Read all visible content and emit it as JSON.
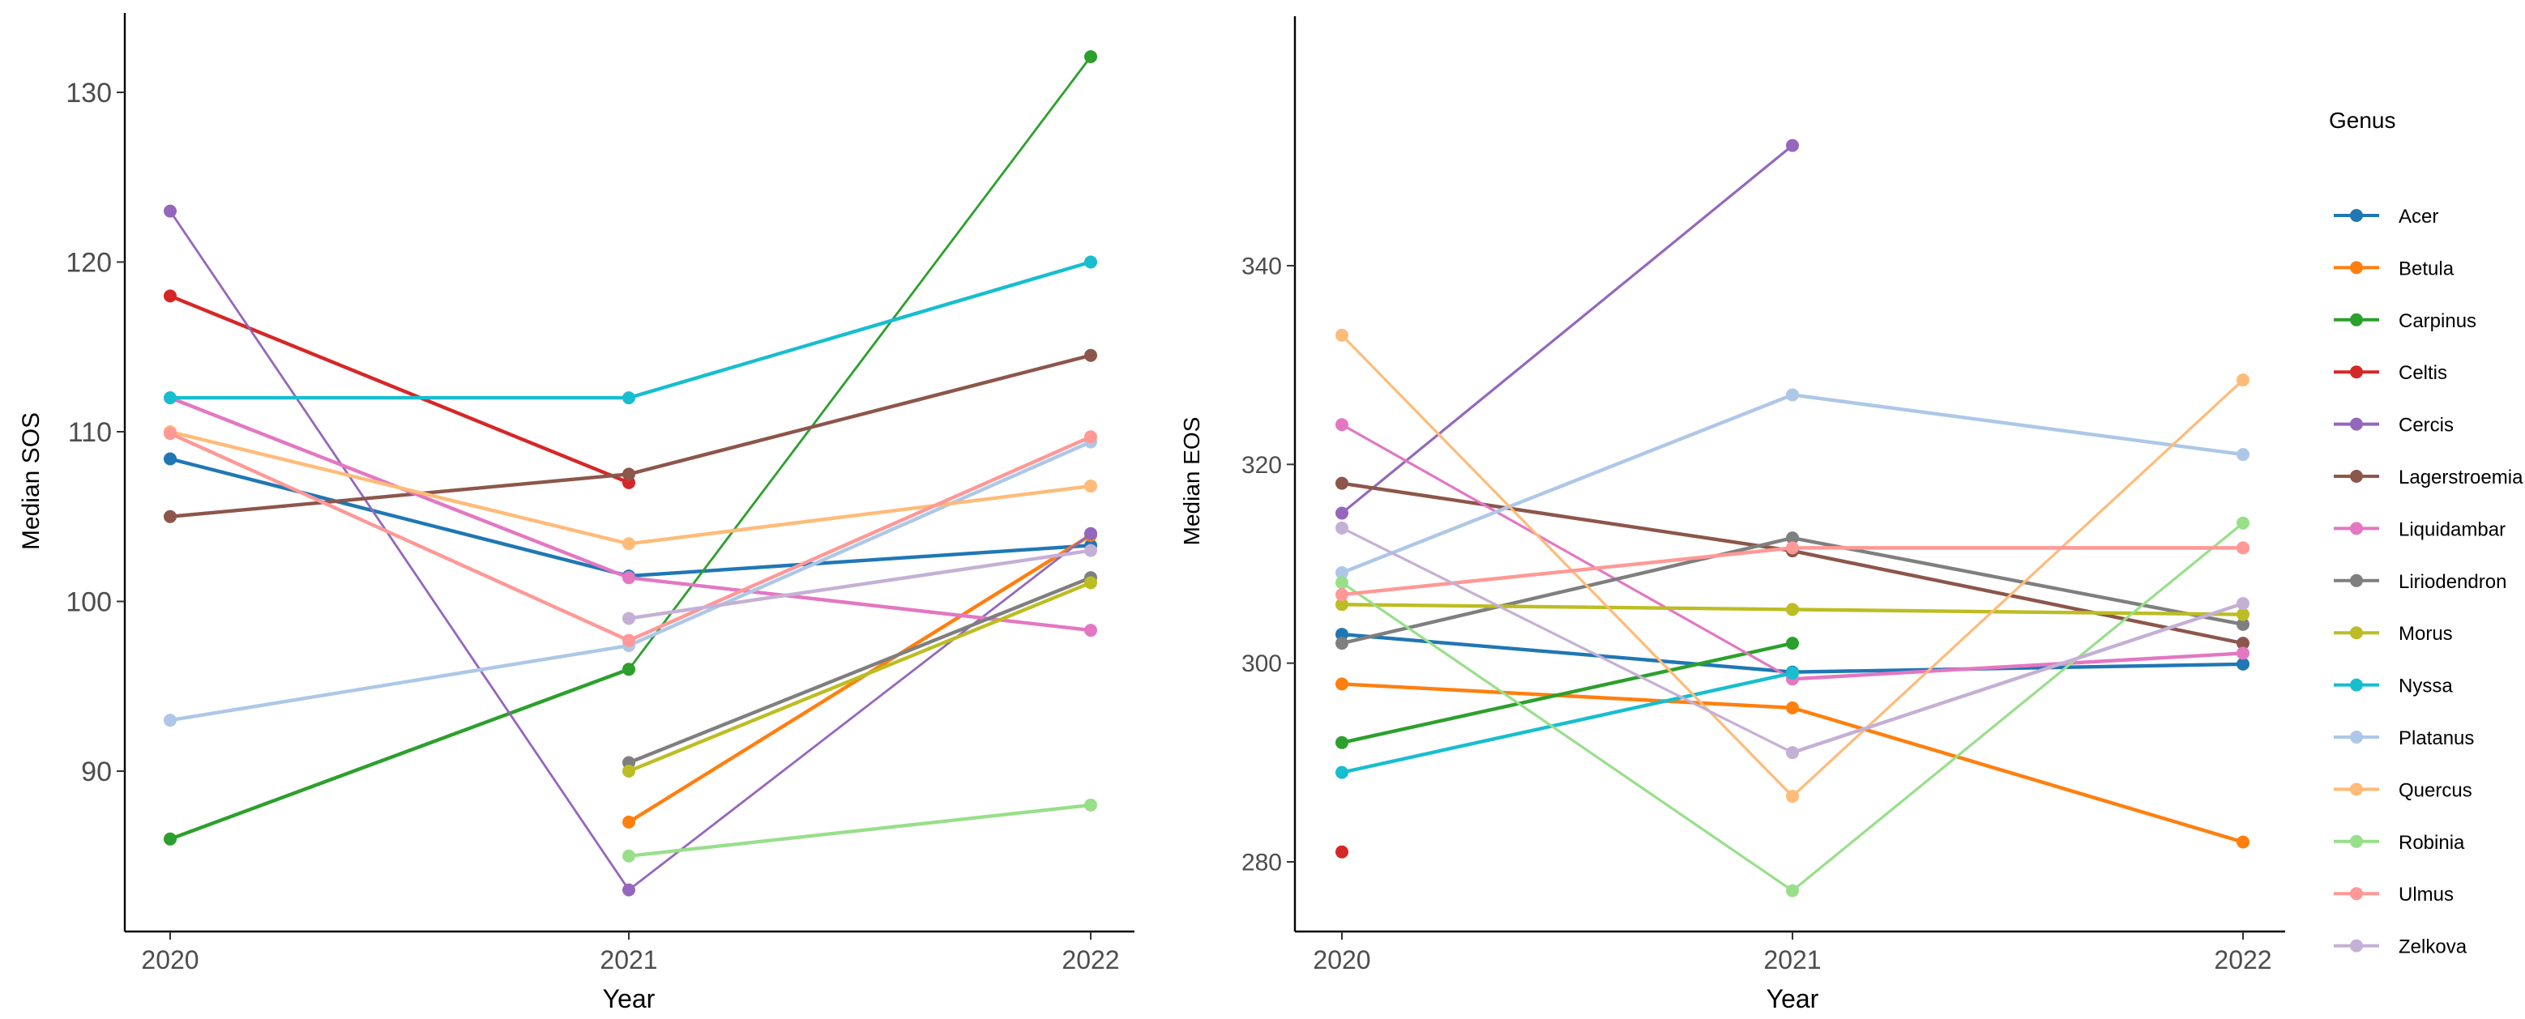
{
  "chart_data": [
    {
      "type": "line",
      "title": "",
      "xlabel": "Year",
      "ylabel": "Median SOS",
      "x": [
        "2020",
        "2021",
        "2022"
      ],
      "yticks": [
        "90",
        "100",
        "110",
        "120",
        "130"
      ],
      "ylim": [
        80.5,
        134.5
      ],
      "grid": false,
      "series": [
        {
          "name": "Acer",
          "values": [
            108.4,
            101.5,
            103.3
          ]
        },
        {
          "name": "Betula",
          "values": [
            null,
            87.0,
            103.9
          ]
        },
        {
          "name": "Carpinus",
          "values": [
            86.0,
            96.0,
            132.1
          ]
        },
        {
          "name": "Celtis",
          "values": [
            118.0,
            107.0,
            null
          ]
        },
        {
          "name": "Cercis",
          "values": [
            123.0,
            83.0,
            104.0
          ]
        },
        {
          "name": "Lagerstroemia",
          "values": [
            105.0,
            107.5,
            114.5
          ]
        },
        {
          "name": "Liquidambar",
          "values": [
            112.0,
            101.4,
            98.3
          ]
        },
        {
          "name": "Liriodendron",
          "values": [
            null,
            90.5,
            101.4
          ]
        },
        {
          "name": "Morus",
          "values": [
            null,
            90.0,
            101.1
          ]
        },
        {
          "name": "Nyssa",
          "values": [
            112.0,
            112.0,
            120.0
          ]
        },
        {
          "name": "Platanus",
          "values": [
            93.0,
            97.4,
            109.4
          ]
        },
        {
          "name": "Quercus",
          "values": [
            110.0,
            103.4,
            106.8
          ]
        },
        {
          "name": "Robinia",
          "values": [
            null,
            85.0,
            88.0
          ]
        },
        {
          "name": "Ulmus",
          "values": [
            109.9,
            97.7,
            109.7
          ]
        },
        {
          "name": "Zelkova",
          "values": [
            null,
            99.0,
            103.0
          ]
        }
      ]
    },
    {
      "type": "line",
      "title": "",
      "xlabel": "Year",
      "ylabel": "Median EOS",
      "x": [
        "2020",
        "2021",
        "2022"
      ],
      "yticks": [
        "280",
        "300",
        "320",
        "340"
      ],
      "ylim": [
        273,
        355
      ],
      "grid": false,
      "series": [
        {
          "name": "Acer",
          "values": [
            302.9,
            299.1,
            299.9
          ]
        },
        {
          "name": "Betula",
          "values": [
            297.9,
            295.5,
            282.0
          ]
        },
        {
          "name": "Carpinus",
          "values": [
            292.0,
            302.0,
            null
          ]
        },
        {
          "name": "Celtis",
          "values": [
            281.0,
            null,
            null
          ]
        },
        {
          "name": "Cercis",
          "values": [
            315.1,
            352.1,
            null
          ]
        },
        {
          "name": "Lagerstroemia",
          "values": [
            318.1,
            311.3,
            302.0
          ]
        },
        {
          "name": "Liquidambar",
          "values": [
            324.0,
            298.4,
            301.0
          ]
        },
        {
          "name": "Liriodendron",
          "values": [
            302.0,
            312.6,
            303.9
          ]
        },
        {
          "name": "Morus",
          "values": [
            305.9,
            305.4,
            304.9
          ]
        },
        {
          "name": "Nyssa",
          "values": [
            289.0,
            299.0,
            null
          ]
        },
        {
          "name": "Platanus",
          "values": [
            309.1,
            327.0,
            321.0
          ]
        },
        {
          "name": "Quercus",
          "values": [
            333.0,
            286.6,
            328.5
          ]
        },
        {
          "name": "Robinia",
          "values": [
            308.1,
            277.1,
            314.1
          ]
        },
        {
          "name": "Ulmus",
          "values": [
            306.9,
            311.6,
            311.6
          ]
        },
        {
          "name": "Zelkova",
          "values": [
            313.6,
            291.0,
            306.0
          ]
        }
      ]
    }
  ],
  "legend": {
    "title": "Genus",
    "placement": "right",
    "items": [
      "Acer",
      "Betula",
      "Carpinus",
      "Celtis",
      "Cercis",
      "Lagerstroemia",
      "Liquidambar",
      "Liriodendron",
      "Morus",
      "Nyssa",
      "Platanus",
      "Quercus",
      "Robinia",
      "Ulmus",
      "Zelkova"
    ]
  },
  "colors": {
    "Acer": "#1f77b4",
    "Betula": "#ff7f0e",
    "Carpinus": "#2ca02c",
    "Celtis": "#d62728",
    "Cercis": "#9467bd",
    "Lagerstroemia": "#8c564b",
    "Liquidambar": "#e377c2",
    "Liriodendron": "#7f7f7f",
    "Morus": "#bcbd22",
    "Nyssa": "#17becf",
    "Platanus": "#aec7e8",
    "Quercus": "#ffbb78",
    "Robinia": "#98df8a",
    "Ulmus": "#ff9896",
    "Zelkova": "#c5b0d5"
  }
}
